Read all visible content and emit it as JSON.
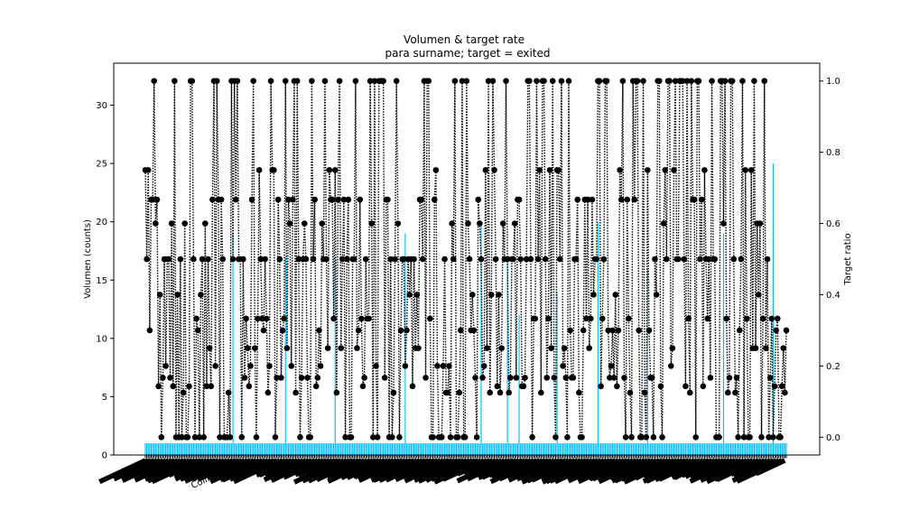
{
  "chart_data": {
    "type": "bar",
    "title": "Volumen & target rate",
    "subtitle": "para surname; target = exited",
    "ylabel": "Volumen (counts)",
    "y2label": "Target ratio",
    "ylim": [
      0,
      33.6
    ],
    "y2lim": [
      -0.05,
      1.05
    ],
    "yticks": [
      0,
      5,
      10,
      15,
      20,
      25,
      30
    ],
    "y2ticks": [
      0.0,
      0.2,
      0.4,
      0.6,
      0.8,
      1.0
    ],
    "grid": false,
    "legend": "none",
    "category_count": 440,
    "bar_baseline": 1,
    "bar_color": "#00bfff",
    "line_color": "#000000",
    "tall_bars": [
      {
        "index": 60,
        "value": 19
      },
      {
        "index": 96,
        "value": 17
      },
      {
        "index": 130,
        "value": 17
      },
      {
        "index": 178,
        "value": 19
      },
      {
        "index": 230,
        "value": 20
      },
      {
        "index": 248,
        "value": 17
      },
      {
        "index": 256,
        "value": 12
      },
      {
        "index": 282,
        "value": 14
      },
      {
        "index": 310,
        "value": 20
      },
      {
        "index": 344,
        "value": 16
      },
      {
        "index": 396,
        "value": 19
      },
      {
        "index": 430,
        "value": 25
      }
    ],
    "visible_categories": [
      {
        "label": "Bar",
        "index": 12
      },
      {
        "label": "Chiazo",
        "index": 48
      },
      {
        "label": "Collingridge",
        "index": 66
      },
      {
        "label": "Fleet",
        "index": 110
      },
      {
        "label": "Hay",
        "index": 150
      },
      {
        "label": "Kao",
        "index": 172
      },
      {
        "label": "Kor",
        "index": 186
      },
      {
        "label": "Mu",
        "index": 236
      },
      {
        "label": "Ond",
        "index": 262
      },
      {
        "label": "Sc",
        "index": 322
      },
      {
        "label": "Sor",
        "index": 346
      },
      {
        "label": "Ugod",
        "index": 378
      },
      {
        "label": "Ziko",
        "index": 412
      }
    ]
  }
}
